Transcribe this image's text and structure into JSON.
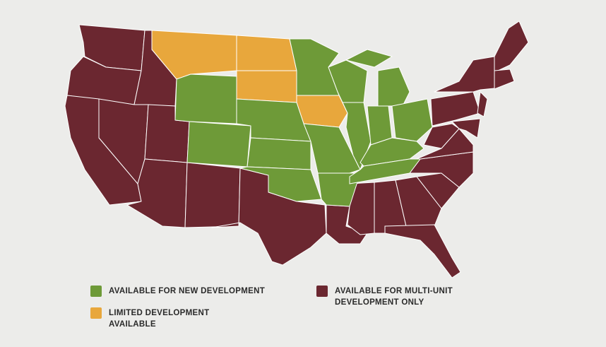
{
  "legend": [
    {
      "lines": [
        "AVAILABLE FOR NEW DEVELOPMENT"
      ],
      "color": "#6e9a38"
    },
    {
      "lines": [
        "LIMITED DEVELOPMENT",
        "AVAILABLE"
      ],
      "color": "#e8a73c"
    },
    {
      "lines": [
        "AVAILABLE FOR MULTI-UNIT",
        "DEVELOPMENT ONLY"
      ],
      "color": "#6b2730"
    }
  ]
}
